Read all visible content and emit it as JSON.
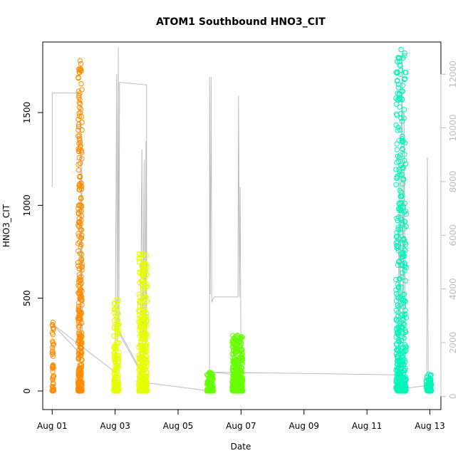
{
  "chart_data": {
    "type": "scatter",
    "title": "ATOM1 Southbound HNO3_CIT",
    "xlabel": "Date",
    "ylabel": "HNO3_CIT",
    "x_ticks": [
      "Aug 01",
      "Aug 03",
      "Aug 05",
      "Aug 07",
      "Aug 09",
      "Aug 11",
      "Aug 13"
    ],
    "x_tick_days": [
      1,
      3,
      5,
      7,
      9,
      11,
      13
    ],
    "xlim": [
      0.7,
      13.35
    ],
    "y_ticks": [
      0,
      500,
      1000,
      1500
    ],
    "ylim": [
      -100,
      1880
    ],
    "y2_ticks": [
      0,
      2000,
      4000,
      6000,
      8000,
      10000,
      12000
    ],
    "y2lim": [
      -495,
      13200
    ],
    "marker": "open-circle",
    "series": [
      {
        "color": "#ff8c00",
        "clusters": [
          {
            "x": [
              1.0,
              1.05
            ],
            "y": [
              0,
              370
            ],
            "n": 45
          },
          {
            "x": [
              1.82,
              1.95
            ],
            "y": [
              0,
              1780
            ],
            "n": 300
          }
        ]
      },
      {
        "color": "#e6ff00",
        "clusters": [
          {
            "x": [
              2.95,
              3.12
            ],
            "y": [
              0,
              490
            ],
            "n": 150
          },
          {
            "x": [
              3.75,
              4.02
            ],
            "y": [
              0,
              740
            ],
            "n": 320
          }
        ]
      },
      {
        "color": "#66ff00",
        "clusters": [
          {
            "x": [
              5.92,
              6.12
            ],
            "y": [
              0,
              100
            ],
            "n": 110
          },
          {
            "x": [
              6.72,
              7.05
            ],
            "y": [
              0,
              300
            ],
            "n": 340
          }
        ]
      },
      {
        "color": "#00f5b8",
        "clusters": [
          {
            "x": [
              11.92,
              12.25
            ],
            "y": [
              0,
              1840
            ],
            "n": 420
          },
          {
            "x": [
              12.88,
              13.05
            ],
            "y": [
              0,
              90
            ],
            "n": 80
          }
        ]
      }
    ],
    "altitude_trace": {
      "color": "#bdbdbd",
      "points": [
        [
          1.0,
          7800
        ],
        [
          1.0,
          11300
        ],
        [
          1.9,
          11300
        ],
        [
          1.92,
          2000
        ],
        [
          1.94,
          9000
        ],
        [
          1.96,
          1500
        ],
        [
          1.0,
          2700
        ],
        [
          3.0,
          900
        ],
        [
          3.05,
          12000
        ],
        [
          3.07,
          2000
        ],
        [
          3.1,
          13000
        ],
        [
          3.12,
          2300
        ],
        [
          3.14,
          11700
        ],
        [
          4.0,
          11600
        ],
        [
          4.0,
          2000
        ],
        [
          3.98,
          9500
        ],
        [
          3.95,
          1000
        ],
        [
          3.92,
          8800
        ],
        [
          3.88,
          1000
        ],
        [
          3.85,
          9200
        ],
        [
          3.8,
          1000
        ],
        [
          3.05,
          2600
        ],
        [
          3.1,
          2400
        ],
        [
          4.0,
          500
        ],
        [
          6.0,
          200
        ],
        [
          6.0,
          11900
        ],
        [
          6.02,
          3800
        ],
        [
          6.05,
          11900
        ],
        [
          6.07,
          3500
        ],
        [
          6.1,
          3600
        ],
        [
          6.15,
          3700
        ],
        [
          6.9,
          3700
        ],
        [
          6.92,
          11200
        ],
        [
          6.95,
          3700
        ],
        [
          6.97,
          7800
        ],
        [
          7.0,
          800
        ],
        [
          6.0,
          900
        ],
        [
          12.0,
          800
        ],
        [
          12.02,
          9000
        ],
        [
          12.05,
          1000
        ],
        [
          12.08,
          8800
        ],
        [
          12.12,
          12800
        ],
        [
          12.15,
          1500
        ],
        [
          12.18,
          10600
        ],
        [
          12.22,
          800
        ],
        [
          12.25,
          300
        ],
        [
          12.9,
          400
        ],
        [
          12.92,
          8900
        ],
        [
          12.95,
          200
        ],
        [
          13.0,
          100
        ]
      ]
    }
  }
}
